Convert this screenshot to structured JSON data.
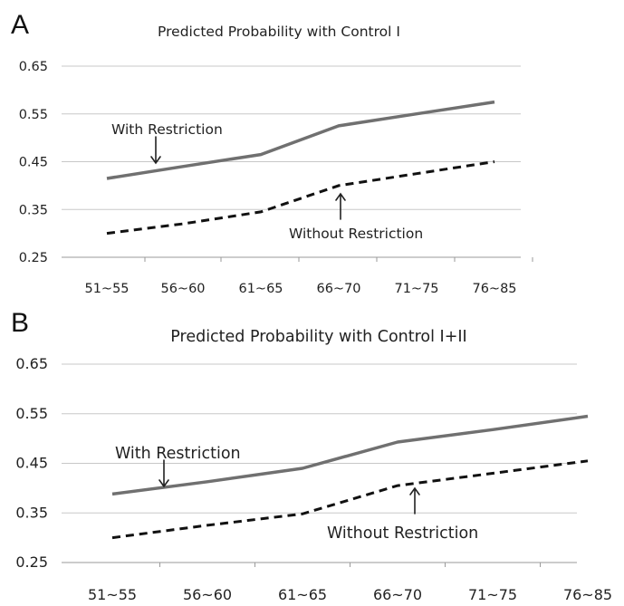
{
  "chart_data": [
    {
      "type": "line",
      "panel": "A",
      "title": "Predicted Probability with Control I",
      "categories": [
        "51~55",
        "56~60",
        "61~65",
        "66~70",
        "71~75",
        "76~85"
      ],
      "ylim": [
        0.25,
        0.65
      ],
      "yticks": [
        "0.65",
        "0.55",
        "0.45",
        "0.35",
        "0.25"
      ],
      "grid": true,
      "series": [
        {
          "name": "With Restriction",
          "style": "solid",
          "color": "#707070",
          "values": [
            0.415,
            0.44,
            0.465,
            0.525,
            0.55,
            0.575
          ]
        },
        {
          "name": "Without Restriction",
          "style": "dashed",
          "color": "#111111",
          "values": [
            0.3,
            0.32,
            0.345,
            0.4,
            0.425,
            0.45
          ]
        }
      ]
    },
    {
      "type": "line",
      "panel": "B",
      "title": "Predicted Probability with Control I+II",
      "categories": [
        "51~55",
        "56~60",
        "61~65",
        "66~70",
        "71~75",
        "76~85"
      ],
      "ylim": [
        0.25,
        0.65
      ],
      "yticks": [
        "0.65",
        "0.55",
        "0.45",
        "0.35",
        "0.25"
      ],
      "grid": true,
      "series": [
        {
          "name": "With Restriction",
          "style": "solid",
          "color": "#707070",
          "values": [
            0.388,
            0.413,
            0.44,
            0.493,
            0.518,
            0.545
          ]
        },
        {
          "name": "Without Restriction",
          "style": "dashed",
          "color": "#111111",
          "values": [
            0.3,
            0.325,
            0.348,
            0.405,
            0.43,
            0.455
          ]
        }
      ]
    }
  ]
}
